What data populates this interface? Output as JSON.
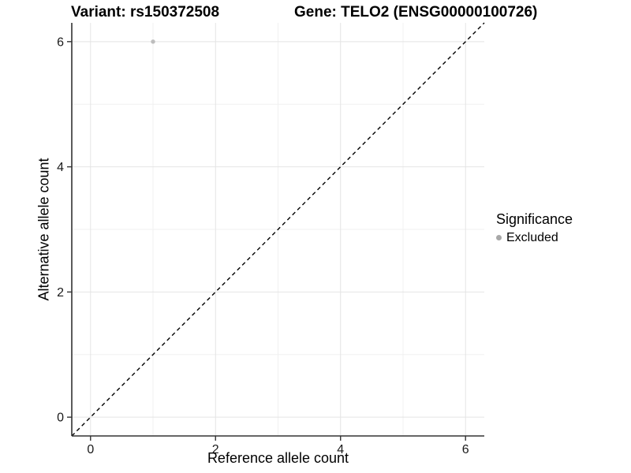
{
  "header": {
    "variant_title": "Variant: rs150372508",
    "gene_title": "Gene: TELO2 (ENSG00000100726)"
  },
  "chart_data": {
    "type": "scatter",
    "title_left": "Variant: rs150372508",
    "title_right": "Gene: TELO2 (ENSG00000100726)",
    "xlabel": "Reference allele count",
    "ylabel": "Alternative allele count",
    "xlim": [
      -0.3,
      6.3
    ],
    "ylim": [
      -0.3,
      6.3
    ],
    "x_ticks": [
      0,
      2,
      4,
      6
    ],
    "y_ticks": [
      0,
      2,
      4,
      6
    ],
    "x_minor_ticks": [
      1,
      3,
      5
    ],
    "y_minor_ticks": [
      1,
      3,
      5
    ],
    "grid": true,
    "identity_line": {
      "style": "dashed",
      "color": "#000000",
      "from": [
        -0.3,
        -0.3
      ],
      "to": [
        6.3,
        6.3
      ]
    },
    "series": [
      {
        "name": "Excluded",
        "color": "#bdbdbd",
        "point_radius": 2.7,
        "points": [
          {
            "x": 1,
            "y": 6
          }
        ]
      }
    ],
    "legend": {
      "title": "Significance",
      "position": "right",
      "items": [
        {
          "label": "Excluded",
          "color": "#a8a8a8"
        }
      ]
    },
    "colors": {
      "grid_major": "#e4e4e4",
      "grid_minor": "#f0f0f0",
      "axis_line": "#333333",
      "tick_text": "#1a1a1a",
      "background": "#ffffff"
    }
  }
}
